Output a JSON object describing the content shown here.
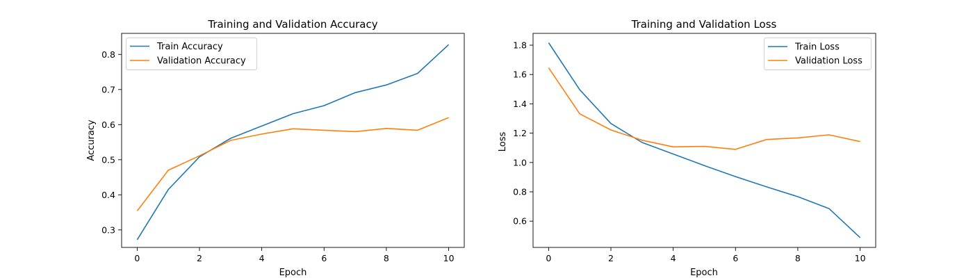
{
  "chart_data": [
    {
      "type": "line",
      "title": "Training and Validation Accuracy",
      "xlabel": "Epoch",
      "ylabel": "Accuracy",
      "xlim": [
        -0.5,
        10.5
      ],
      "ylim": [
        0.255,
        0.865
      ],
      "xticks": [
        0,
        2,
        4,
        6,
        8,
        10
      ],
      "xtick_labels": [
        "0",
        "2",
        "4",
        "6",
        "8",
        "10"
      ],
      "yticks": [
        0.3,
        0.4,
        0.5,
        0.6,
        0.7,
        0.8
      ],
      "ytick_labels": [
        "0.3",
        "0.4",
        "0.5",
        "0.6",
        "0.7",
        "0.8"
      ],
      "grid": false,
      "legend_position": "top-left",
      "x": [
        0,
        1,
        2,
        3,
        4,
        5,
        6,
        7,
        8,
        9,
        10
      ],
      "series": [
        {
          "name": "Train Accuracy",
          "color": "#1f77b4",
          "values": [
            0.277,
            0.42,
            0.513,
            0.566,
            0.601,
            0.636,
            0.659,
            0.696,
            0.718,
            0.751,
            0.833
          ]
        },
        {
          "name": "Validation Accuracy",
          "color": "#ff7f0e",
          "values": [
            0.359,
            0.475,
            0.516,
            0.56,
            0.578,
            0.593,
            0.589,
            0.585,
            0.594,
            0.589,
            0.625
          ]
        }
      ]
    },
    {
      "type": "line",
      "title": "Training and Validation Loss",
      "xlabel": "Epoch",
      "ylabel": "Loss",
      "xlim": [
        -0.5,
        10.5
      ],
      "ylim": [
        0.42,
        1.88
      ],
      "xticks": [
        0,
        2,
        4,
        6,
        8,
        10
      ],
      "xtick_labels": [
        "0",
        "2",
        "4",
        "6",
        "8",
        "10"
      ],
      "yticks": [
        0.6,
        0.8,
        1.0,
        1.2,
        1.4,
        1.6,
        1.8
      ],
      "ytick_labels": [
        "0.6",
        "0.8",
        "1.0",
        "1.2",
        "1.4",
        "1.6",
        "1.8"
      ],
      "grid": false,
      "legend_position": "top-right",
      "x": [
        0,
        1,
        2,
        3,
        4,
        5,
        6,
        7,
        8,
        9,
        10
      ],
      "series": [
        {
          "name": "Train Loss",
          "color": "#1f77b4",
          "values": [
            1.816,
            1.495,
            1.265,
            1.136,
            1.057,
            0.978,
            0.903,
            0.833,
            0.766,
            0.685,
            0.487
          ]
        },
        {
          "name": "Validation Loss",
          "color": "#ff7f0e",
          "values": [
            1.645,
            1.331,
            1.221,
            1.151,
            1.106,
            1.109,
            1.089,
            1.156,
            1.167,
            1.188,
            1.142
          ]
        }
      ]
    }
  ]
}
